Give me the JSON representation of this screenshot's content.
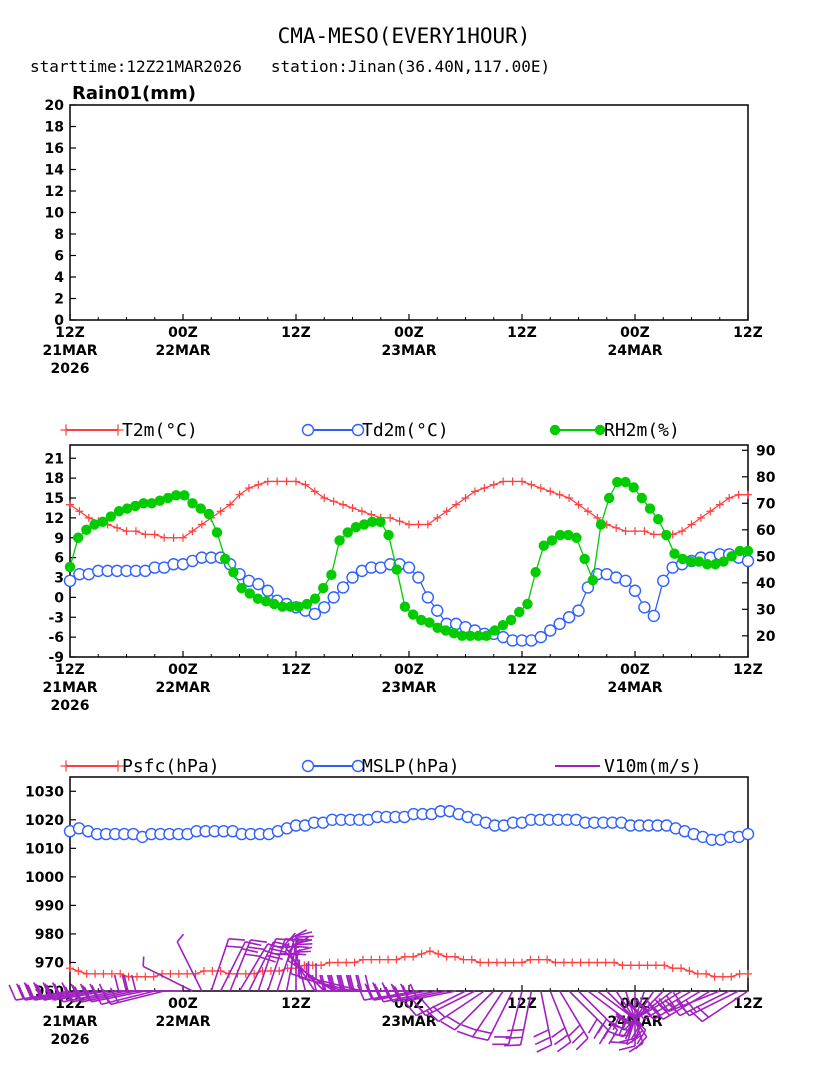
{
  "header": {
    "title": "CMA-MESO(EVERY1HOUR)",
    "subtitle": "starttime:12Z21MAR2026   station:Jinan(36.40N,117.00E)"
  },
  "x_ticks": [
    {
      "l1": "12Z",
      "l2": "21MAR",
      "l3": "2026"
    },
    {
      "l1": "00Z",
      "l2": "22MAR",
      "l3": ""
    },
    {
      "l1": "12Z",
      "l2": "",
      "l3": ""
    },
    {
      "l1": "00Z",
      "l2": "23MAR",
      "l3": ""
    },
    {
      "l1": "12Z",
      "l2": "",
      "l3": ""
    },
    {
      "l1": "00Z",
      "l2": "24MAR",
      "l3": ""
    },
    {
      "l1": "12Z",
      "l2": "",
      "l3": ""
    }
  ],
  "chart_data": [
    {
      "type": "bar",
      "title": "Rain01(mm)",
      "ylim": [
        0,
        20
      ],
      "yticks": [
        "0",
        "2",
        "4",
        "6",
        "8",
        "10",
        "12",
        "14",
        "16",
        "18",
        "20"
      ],
      "x_hours": [
        0,
        72
      ],
      "values": []
    },
    {
      "type": "line",
      "title": "",
      "legend": [
        "T2m(°C)",
        "Td2m(°C)",
        "RH2m(%)"
      ],
      "left_ylim": [
        -9,
        23
      ],
      "left_yticks": [
        "-9",
        "-6",
        "-3",
        "0",
        "3",
        "6",
        "9",
        "12",
        "15",
        "18",
        "21"
      ],
      "right_ylim": [
        12,
        92
      ],
      "right_yticks": [
        "20",
        "30",
        "40",
        "50",
        "60",
        "70",
        "80",
        "90"
      ],
      "series": [
        {
          "name": "T2m(°C)",
          "axis": "left",
          "color": "#ff4040",
          "marker": "plus",
          "values": [
            14,
            13,
            12,
            11.5,
            11,
            10.5,
            10,
            10,
            9.5,
            9.5,
            9,
            9,
            9,
            10,
            11,
            12,
            13,
            14,
            15.5,
            16.5,
            17,
            17.5,
            17.5,
            17.5,
            17.5,
            17,
            16,
            15,
            14.5,
            14,
            13.5,
            13,
            12.5,
            12,
            12,
            11.5,
            11,
            11,
            11,
            12,
            13,
            14,
            15,
            16,
            16.5,
            17,
            17.5,
            17.5,
            17.5,
            17,
            16.5,
            16,
            15.5,
            15,
            14,
            13,
            12,
            11,
            10.5,
            10,
            10,
            10,
            9.5,
            9.5,
            9.5,
            10,
            11,
            12,
            13,
            14,
            15,
            15.5,
            15.5
          ]
        },
        {
          "name": "Td2m(°C)",
          "axis": "left",
          "color": "#3060ff",
          "marker": "circle",
          "values": [
            2.5,
            3.5,
            3.5,
            4,
            4,
            4,
            4,
            4,
            4,
            4.5,
            4.5,
            5,
            5,
            5.5,
            6,
            6,
            6,
            5,
            3.5,
            2.5,
            2,
            1,
            -0.5,
            -1,
            -1.5,
            -2,
            -2.5,
            -1.5,
            0,
            1.5,
            3,
            4,
            4.5,
            4.5,
            5,
            5,
            4.5,
            3,
            0,
            -2,
            -4,
            -4,
            -4.5,
            -5,
            -5.5,
            -5.5,
            -6,
            -6.5,
            -6.5,
            -6.5,
            -6,
            -5,
            -4,
            -3,
            -2,
            1.5,
            3.5,
            3.5,
            3,
            2.5,
            1,
            -1.5,
            -2.8,
            2.5,
            4.5,
            5,
            5.5,
            6,
            6,
            6.5,
            6.5,
            6,
            5.5
          ]
        },
        {
          "name": "RH2m(%)",
          "axis": "right",
          "color": "#00cc00",
          "marker": "dot",
          "values": [
            46,
            57,
            60,
            62,
            63,
            65,
            67,
            68,
            69,
            70,
            70,
            71,
            72,
            73,
            73,
            70,
            68,
            66,
            59,
            49,
            44,
            38,
            36,
            34,
            33,
            32,
            31,
            31,
            31,
            32,
            34,
            38,
            43,
            56,
            59,
            61,
            62,
            63,
            63,
            58,
            45,
            31,
            28,
            26,
            25,
            23,
            22,
            21,
            20,
            20,
            20,
            20,
            22,
            24,
            26,
            29,
            32,
            44,
            54,
            56,
            58,
            58,
            57,
            49,
            41,
            62,
            72,
            78,
            78,
            76,
            72,
            68,
            64,
            58,
            51,
            49,
            48,
            48,
            47,
            47,
            48,
            50,
            52,
            52
          ]
        }
      ]
    },
    {
      "type": "line",
      "title": "",
      "legend": [
        "Psfc(hPa)",
        "MSLP(hPa)",
        "V10m(m/s)"
      ],
      "ylim": [
        960,
        1035
      ],
      "yticks": [
        "960",
        "970",
        "980",
        "990",
        "1000",
        "1010",
        "1020",
        "1030"
      ],
      "series": [
        {
          "name": "Psfc(hPa)",
          "color": "#ff4040",
          "marker": "plus",
          "values": [
            968,
            967,
            966,
            966,
            966,
            966,
            966,
            965,
            965,
            965,
            965,
            966,
            966,
            966,
            966,
            966,
            967,
            967,
            967,
            966,
            966,
            966,
            966,
            967,
            967,
            967,
            968,
            968,
            969,
            969,
            969,
            970,
            970,
            970,
            970,
            971,
            971,
            971,
            971,
            971,
            972,
            972,
            973,
            974,
            973,
            972,
            972,
            971,
            971,
            970,
            970,
            970,
            970,
            970,
            970,
            971,
            971,
            971,
            970,
            970,
            970,
            970,
            970,
            970,
            970,
            970,
            969,
            969,
            969,
            969,
            969,
            969,
            968,
            968,
            967,
            966,
            966,
            965,
            965,
            965,
            966,
            966
          ]
        },
        {
          "name": "MSLP(hPa)",
          "color": "#3060ff",
          "marker": "circle",
          "values": [
            1016,
            1017,
            1016,
            1015,
            1015,
            1015,
            1015,
            1015,
            1014,
            1015,
            1015,
            1015,
            1015,
            1015,
            1016,
            1016,
            1016,
            1016,
            1016,
            1015,
            1015,
            1015,
            1015,
            1016,
            1017,
            1018,
            1018,
            1019,
            1019,
            1020,
            1020,
            1020,
            1020,
            1020,
            1021,
            1021,
            1021,
            1021,
            1022,
            1022,
            1022,
            1023,
            1023,
            1022,
            1021,
            1020,
            1019,
            1018,
            1018,
            1019,
            1019,
            1020,
            1020,
            1020,
            1020,
            1020,
            1020,
            1019,
            1019,
            1019,
            1019,
            1019,
            1018,
            1018,
            1018,
            1018,
            1018,
            1017,
            1016,
            1015,
            1014,
            1013,
            1013,
            1014,
            1014,
            1015
          ]
        },
        {
          "name": "V10m(m/s)",
          "color": "#a020c0",
          "marker": "barb",
          "u": [
            -6,
            -6,
            -6,
            -6,
            -6,
            -5,
            -5,
            -5,
            -5,
            -4,
            -4,
            -3,
            -3,
            -2,
            -1,
            1,
            2,
            2,
            3,
            3,
            2,
            2,
            2,
            1,
            0,
            -1,
            -2,
            -2,
            -3,
            -3,
            -4,
            -4,
            -5,
            -5,
            -5,
            -6,
            -6,
            -6,
            -6,
            -5,
            -5,
            -5,
            -4,
            -4,
            -3,
            -3,
            -2,
            -2,
            -1,
            -1,
            1,
            2,
            3,
            4,
            4,
            4,
            4,
            3,
            2,
            1,
            0,
            -1,
            -2,
            -3,
            -4,
            -5,
            -5,
            -5,
            -5,
            -5,
            -4,
            -4,
            -3
          ],
          "v": [
            -1,
            -1,
            -1,
            -1,
            -1,
            -1,
            -1,
            -1,
            -1,
            -1,
            -1,
            0,
            0,
            1,
            2,
            3,
            4,
            5,
            5,
            6,
            6,
            6,
            6,
            5,
            5,
            4,
            3,
            2,
            2,
            1,
            1,
            1,
            0,
            0,
            0,
            0,
            0,
            -1,
            -1,
            -1,
            -1,
            -1,
            -2,
            -2,
            -2,
            -3,
            -3,
            -4,
            -4,
            -5,
            -5,
            -5,
            -5,
            -4,
            -4,
            -3,
            -3,
            -3,
            -3,
            -3,
            -3,
            -3,
            -3,
            -3,
            -3,
            -3,
            -3,
            -3,
            -3,
            -2,
            -2,
            -2,
            -2
          ]
        }
      ]
    }
  ]
}
